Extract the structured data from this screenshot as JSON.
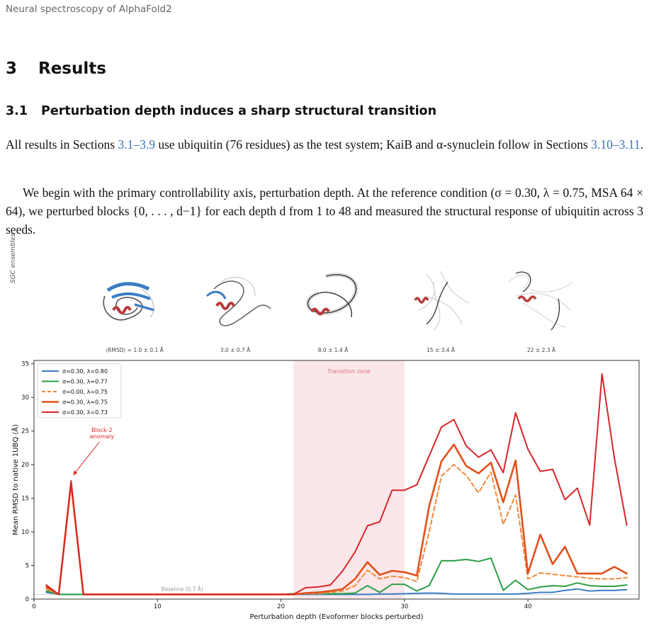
{
  "header": {
    "running_title": "Neural spectroscopy of AlphaFold2"
  },
  "section": {
    "number": "3",
    "title": "Results"
  },
  "subsection": {
    "number": "3.1",
    "title": "Perturbation depth induces a sharp structural transition"
  },
  "para1": {
    "t1": "All results in Sections ",
    "r1": "3.1–3.9",
    "t2": " use ubiquitin (76 residues) as the test system; KaiB and α-synuclein follow in Sections ",
    "r2": "3.10–3.11",
    "t3": "."
  },
  "para2": {
    "text": "We begin with the primary controllability axis, perturbation depth. At the reference condition (σ = 0.30, λ = 0.75, MSA 64 × 64), we perturbed blocks {0, . . . , d−1} for each depth d from 1 to 48 and measured the structural response of ubiquitin across 3 seeds."
  },
  "figure": {
    "ensemble_axis_label": "SGC ensembles",
    "ensembles": [
      {
        "label": "⟨RMSD⟩ = 1.0 ± 0.1 Å"
      },
      {
        "label": "3.0 ± 0.7 Å"
      },
      {
        "label": "8.0 ± 1.4 Å"
      },
      {
        "label": "15 ± 3.4 Å"
      },
      {
        "label": "22 ± 2.3 Å"
      }
    ],
    "annotations": {
      "transition_zone": "Transition zone",
      "anomaly_line1": "Block-2",
      "anomaly_line2": "anomaly",
      "baseline": "Baseline (0.7 Å)"
    }
  },
  "chart_data": {
    "type": "line",
    "xlabel": "Perturbation depth (Evoformer blocks perturbed)",
    "ylabel": "Mean RMSD to native 1UBQ (Å)",
    "xlim": [
      0,
      49
    ],
    "ylim": [
      0,
      35.5
    ],
    "xticks": [
      0,
      10,
      20,
      30,
      40
    ],
    "yticks": [
      0,
      5,
      10,
      15,
      20,
      25,
      30,
      35
    ],
    "grid": false,
    "legend_position": "top-left",
    "transition_zone": [
      21,
      30
    ],
    "baseline": 0.7,
    "x": [
      1,
      2,
      3,
      4,
      5,
      6,
      7,
      8,
      9,
      10,
      11,
      12,
      13,
      14,
      15,
      16,
      17,
      18,
      19,
      20,
      21,
      22,
      23,
      24,
      25,
      26,
      27,
      28,
      29,
      30,
      31,
      32,
      33,
      34,
      35,
      36,
      37,
      38,
      39,
      40,
      41,
      42,
      43,
      44,
      45,
      46,
      47,
      48
    ],
    "series": [
      {
        "name": "σ=0.30, λ=0.80",
        "color": "#3b7dc4",
        "dash": false,
        "width": 2,
        "values": [
          1.0,
          0.7,
          0.7,
          0.7,
          0.7,
          0.7,
          0.7,
          0.7,
          0.7,
          0.7,
          0.7,
          0.7,
          0.7,
          0.7,
          0.7,
          0.7,
          0.7,
          0.7,
          0.7,
          0.7,
          0.7,
          0.7,
          0.7,
          0.7,
          0.7,
          0.7,
          0.7,
          0.75,
          0.75,
          0.8,
          0.85,
          0.9,
          0.85,
          0.75,
          0.75,
          0.75,
          0.75,
          0.75,
          0.75,
          0.85,
          1.0,
          1.0,
          1.3,
          1.5,
          1.2,
          1.3,
          1.3,
          1.4
        ]
      },
      {
        "name": "σ=0.30, λ=0.77",
        "color": "#2e9e44",
        "dash": false,
        "width": 2,
        "values": [
          1.2,
          0.7,
          0.7,
          0.7,
          0.7,
          0.7,
          0.7,
          0.7,
          0.7,
          0.7,
          0.7,
          0.7,
          0.7,
          0.7,
          0.7,
          0.7,
          0.7,
          0.7,
          0.7,
          0.7,
          0.8,
          0.8,
          0.8,
          0.8,
          0.8,
          0.9,
          2.0,
          1.0,
          2.2,
          2.2,
          1.2,
          2.0,
          5.7,
          5.7,
          5.9,
          5.6,
          6.1,
          1.3,
          2.8,
          1.4,
          1.8,
          2.0,
          1.9,
          2.4,
          2.0,
          1.9,
          1.9,
          2.1
        ]
      },
      {
        "name": "σ=0.00, λ=0.75",
        "color": "#f08a3c",
        "dash": true,
        "width": 2,
        "values": [
          1.5,
          0.7,
          16.9,
          0.7,
          0.7,
          0.7,
          0.7,
          0.7,
          0.7,
          0.7,
          0.7,
          0.7,
          0.7,
          0.7,
          0.7,
          0.7,
          0.7,
          0.7,
          0.7,
          0.7,
          0.7,
          0.8,
          0.8,
          1.0,
          1.2,
          2.0,
          4.3,
          3.0,
          3.4,
          3.2,
          2.6,
          10.0,
          18.3,
          20.0,
          18.4,
          15.8,
          18.9,
          11.1,
          15.5,
          3.0,
          3.9,
          3.7,
          3.5,
          3.3,
          3.1,
          3.0,
          3.0,
          3.2
        ]
      },
      {
        "name": "σ=0.30, λ=0.75",
        "color": "#e0501c",
        "dash": false,
        "width": 2.6,
        "values": [
          1.8,
          0.7,
          17.3,
          0.7,
          0.7,
          0.7,
          0.7,
          0.7,
          0.7,
          0.7,
          0.7,
          0.7,
          0.7,
          0.7,
          0.7,
          0.7,
          0.7,
          0.7,
          0.7,
          0.7,
          0.7,
          0.9,
          1.0,
          1.2,
          1.5,
          3.0,
          5.5,
          3.6,
          4.2,
          4.0,
          3.5,
          13.8,
          20.5,
          23.0,
          19.8,
          18.7,
          20.3,
          14.4,
          20.6,
          3.8,
          9.6,
          5.2,
          7.8,
          3.8,
          3.8,
          3.8,
          4.8,
          3.8
        ]
      },
      {
        "name": "σ=0.30, λ=0.73",
        "color": "#d62728",
        "dash": false,
        "width": 2,
        "values": [
          2.1,
          0.7,
          17.6,
          0.7,
          0.7,
          0.7,
          0.7,
          0.7,
          0.7,
          0.7,
          0.7,
          0.7,
          0.7,
          0.7,
          0.7,
          0.7,
          0.7,
          0.7,
          0.7,
          0.7,
          0.7,
          1.7,
          1.8,
          2.1,
          4.2,
          7.0,
          10.9,
          11.5,
          16.2,
          16.2,
          17.0,
          21.3,
          25.6,
          26.7,
          22.8,
          21.1,
          22.2,
          18.8,
          27.7,
          22.3,
          19.0,
          19.3,
          14.8,
          16.5,
          11.0,
          33.5,
          21.0,
          11.0
        ]
      }
    ]
  }
}
